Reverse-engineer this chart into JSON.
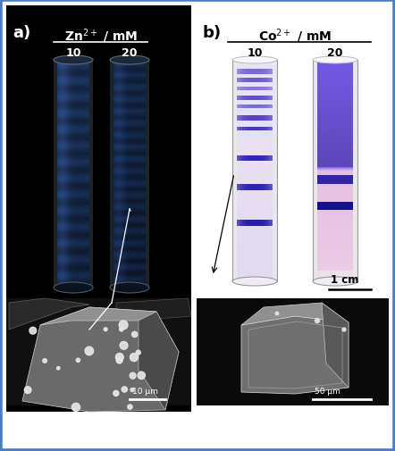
{
  "border_color": "#4a7cc7",
  "border_linewidth": 4,
  "background_color": "#ffffff",
  "fig_width": 4.42,
  "fig_height": 5.06,
  "dpi": 100,
  "panel_a_label": "a)",
  "panel_b_label": "b)",
  "label_fontsize": 13,
  "label_fontweight": "bold",
  "zn_title": "Zn$^{2+}$ / mM",
  "co_title": "Co$^{2+}$ / mM",
  "zn_vals": [
    "10",
    "20"
  ],
  "co_vals": [
    "10",
    "20"
  ],
  "scale_bar_a": "10 μm",
  "scale_bar_b": "50 μm",
  "scale_bar_b2": "1 cm",
  "title_fontsize": 10,
  "col_fontsize": 9
}
